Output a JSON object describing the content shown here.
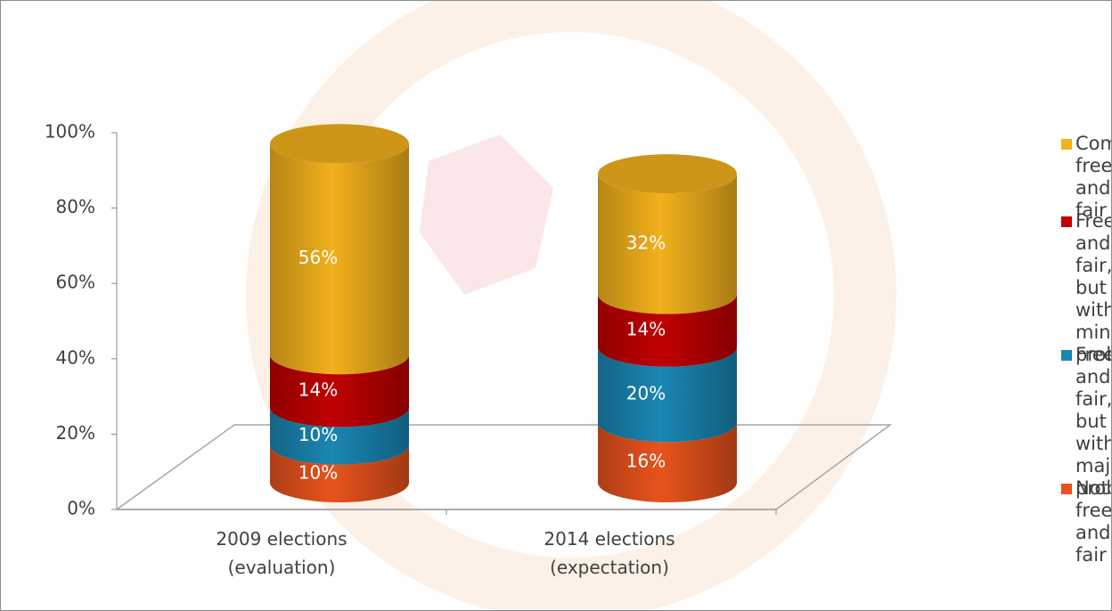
{
  "chart_data": {
    "type": "bar",
    "categories": [
      "2009 elections (evaluation)",
      "2014 elections (expectation)"
    ],
    "series": [
      {
        "name": "Not free and fair",
        "color": "#e8531c",
        "values": [
          10,
          16
        ],
        "value_labels": [
          "10%",
          "16%"
        ]
      },
      {
        "name": "Free and fair, but with major problems",
        "color": "#1a86b2",
        "values": [
          10,
          20
        ],
        "value_labels": [
          "10%",
          "20%"
        ]
      },
      {
        "name": "Free and fair, but with minor problems",
        "color": "#c00000",
        "values": [
          14,
          14
        ],
        "value_labels": [
          "14%",
          "14%"
        ]
      },
      {
        "name": "Completely free and fair",
        "color": "#f2b11c",
        "values": [
          56,
          32
        ],
        "value_labels": [
          "56%",
          "32%"
        ]
      }
    ],
    "ylim": [
      0,
      100
    ],
    "yticks": [
      {
        "value": 0,
        "label": "0%"
      },
      {
        "value": 20,
        "label": "20%"
      },
      {
        "value": 40,
        "label": "40%"
      },
      {
        "value": 60,
        "label": "60%"
      },
      {
        "value": 80,
        "label": "80%"
      },
      {
        "value": 100,
        "label": "100%"
      }
    ],
    "stacked": true
  }
}
